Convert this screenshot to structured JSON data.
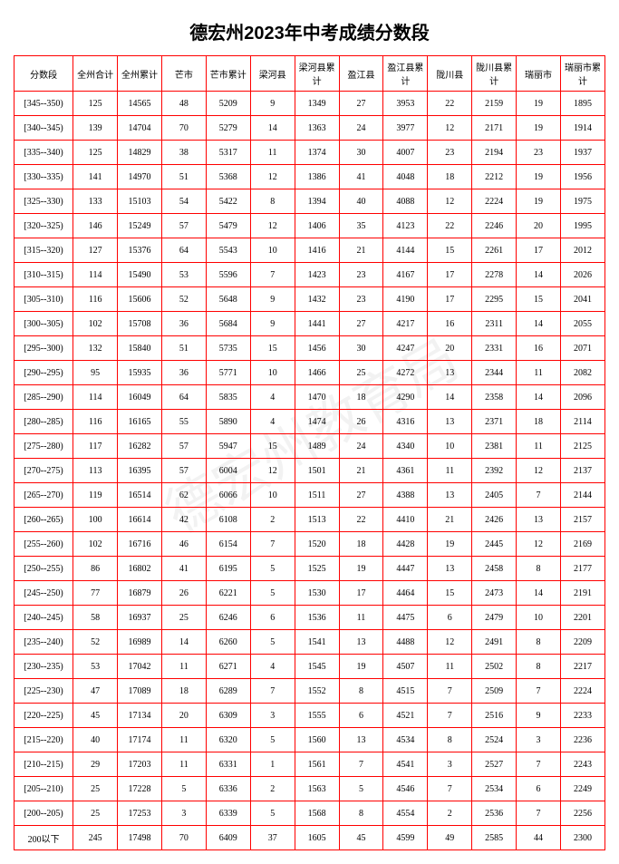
{
  "title": "德宏州2023年中考成绩分数段",
  "columns": [
    "分数段",
    "全州合计",
    "全州累计",
    "芒市",
    "芒市累计",
    "梁河县",
    "梁河县累计",
    "盈江县",
    "盈江县累计",
    "陇川县",
    "陇川县累计",
    "瑞丽市",
    "瑞丽市累计"
  ],
  "rows": [
    [
      "[345--350)",
      "125",
      "14565",
      "48",
      "5209",
      "9",
      "1349",
      "27",
      "3953",
      "22",
      "2159",
      "19",
      "1895"
    ],
    [
      "[340--345)",
      "139",
      "14704",
      "70",
      "5279",
      "14",
      "1363",
      "24",
      "3977",
      "12",
      "2171",
      "19",
      "1914"
    ],
    [
      "[335--340)",
      "125",
      "14829",
      "38",
      "5317",
      "11",
      "1374",
      "30",
      "4007",
      "23",
      "2194",
      "23",
      "1937"
    ],
    [
      "[330--335)",
      "141",
      "14970",
      "51",
      "5368",
      "12",
      "1386",
      "41",
      "4048",
      "18",
      "2212",
      "19",
      "1956"
    ],
    [
      "[325--330)",
      "133",
      "15103",
      "54",
      "5422",
      "8",
      "1394",
      "40",
      "4088",
      "12",
      "2224",
      "19",
      "1975"
    ],
    [
      "[320--325)",
      "146",
      "15249",
      "57",
      "5479",
      "12",
      "1406",
      "35",
      "4123",
      "22",
      "2246",
      "20",
      "1995"
    ],
    [
      "[315--320)",
      "127",
      "15376",
      "64",
      "5543",
      "10",
      "1416",
      "21",
      "4144",
      "15",
      "2261",
      "17",
      "2012"
    ],
    [
      "[310--315)",
      "114",
      "15490",
      "53",
      "5596",
      "7",
      "1423",
      "23",
      "4167",
      "17",
      "2278",
      "14",
      "2026"
    ],
    [
      "[305--310)",
      "116",
      "15606",
      "52",
      "5648",
      "9",
      "1432",
      "23",
      "4190",
      "17",
      "2295",
      "15",
      "2041"
    ],
    [
      "[300--305)",
      "102",
      "15708",
      "36",
      "5684",
      "9",
      "1441",
      "27",
      "4217",
      "16",
      "2311",
      "14",
      "2055"
    ],
    [
      "[295--300)",
      "132",
      "15840",
      "51",
      "5735",
      "15",
      "1456",
      "30",
      "4247",
      "20",
      "2331",
      "16",
      "2071"
    ],
    [
      "[290--295)",
      "95",
      "15935",
      "36",
      "5771",
      "10",
      "1466",
      "25",
      "4272",
      "13",
      "2344",
      "11",
      "2082"
    ],
    [
      "[285--290)",
      "114",
      "16049",
      "64",
      "5835",
      "4",
      "1470",
      "18",
      "4290",
      "14",
      "2358",
      "14",
      "2096"
    ],
    [
      "[280--285)",
      "116",
      "16165",
      "55",
      "5890",
      "4",
      "1474",
      "26",
      "4316",
      "13",
      "2371",
      "18",
      "2114"
    ],
    [
      "[275--280)",
      "117",
      "16282",
      "57",
      "5947",
      "15",
      "1489",
      "24",
      "4340",
      "10",
      "2381",
      "11",
      "2125"
    ],
    [
      "[270--275)",
      "113",
      "16395",
      "57",
      "6004",
      "12",
      "1501",
      "21",
      "4361",
      "11",
      "2392",
      "12",
      "2137"
    ],
    [
      "[265--270)",
      "119",
      "16514",
      "62",
      "6066",
      "10",
      "1511",
      "27",
      "4388",
      "13",
      "2405",
      "7",
      "2144"
    ],
    [
      "[260--265)",
      "100",
      "16614",
      "42",
      "6108",
      "2",
      "1513",
      "22",
      "4410",
      "21",
      "2426",
      "13",
      "2157"
    ],
    [
      "[255--260)",
      "102",
      "16716",
      "46",
      "6154",
      "7",
      "1520",
      "18",
      "4428",
      "19",
      "2445",
      "12",
      "2169"
    ],
    [
      "[250--255)",
      "86",
      "16802",
      "41",
      "6195",
      "5",
      "1525",
      "19",
      "4447",
      "13",
      "2458",
      "8",
      "2177"
    ],
    [
      "[245--250)",
      "77",
      "16879",
      "26",
      "6221",
      "5",
      "1530",
      "17",
      "4464",
      "15",
      "2473",
      "14",
      "2191"
    ],
    [
      "[240--245)",
      "58",
      "16937",
      "25",
      "6246",
      "6",
      "1536",
      "11",
      "4475",
      "6",
      "2479",
      "10",
      "2201"
    ],
    [
      "[235--240)",
      "52",
      "16989",
      "14",
      "6260",
      "5",
      "1541",
      "13",
      "4488",
      "12",
      "2491",
      "8",
      "2209"
    ],
    [
      "[230--235)",
      "53",
      "17042",
      "11",
      "6271",
      "4",
      "1545",
      "19",
      "4507",
      "11",
      "2502",
      "8",
      "2217"
    ],
    [
      "[225--230)",
      "47",
      "17089",
      "18",
      "6289",
      "7",
      "1552",
      "8",
      "4515",
      "7",
      "2509",
      "7",
      "2224"
    ],
    [
      "[220--225)",
      "45",
      "17134",
      "20",
      "6309",
      "3",
      "1555",
      "6",
      "4521",
      "7",
      "2516",
      "9",
      "2233"
    ],
    [
      "[215--220)",
      "40",
      "17174",
      "11",
      "6320",
      "5",
      "1560",
      "13",
      "4534",
      "8",
      "2524",
      "3",
      "2236"
    ],
    [
      "[210--215)",
      "29",
      "17203",
      "11",
      "6331",
      "1",
      "1561",
      "7",
      "4541",
      "3",
      "2527",
      "7",
      "2243"
    ],
    [
      "[205--210)",
      "25",
      "17228",
      "5",
      "6336",
      "2",
      "1563",
      "5",
      "4546",
      "7",
      "2534",
      "6",
      "2249"
    ],
    [
      "[200--205)",
      "25",
      "17253",
      "3",
      "6339",
      "5",
      "1568",
      "8",
      "4554",
      "2",
      "2536",
      "7",
      "2256"
    ],
    [
      "200以下",
      "245",
      "17498",
      "70",
      "6409",
      "37",
      "1605",
      "45",
      "4599",
      "49",
      "2585",
      "44",
      "2300"
    ]
  ],
  "style": {
    "border_color": "#ff0000",
    "title_fontsize": 20,
    "cell_fontsize": 10,
    "background": "#ffffff"
  }
}
